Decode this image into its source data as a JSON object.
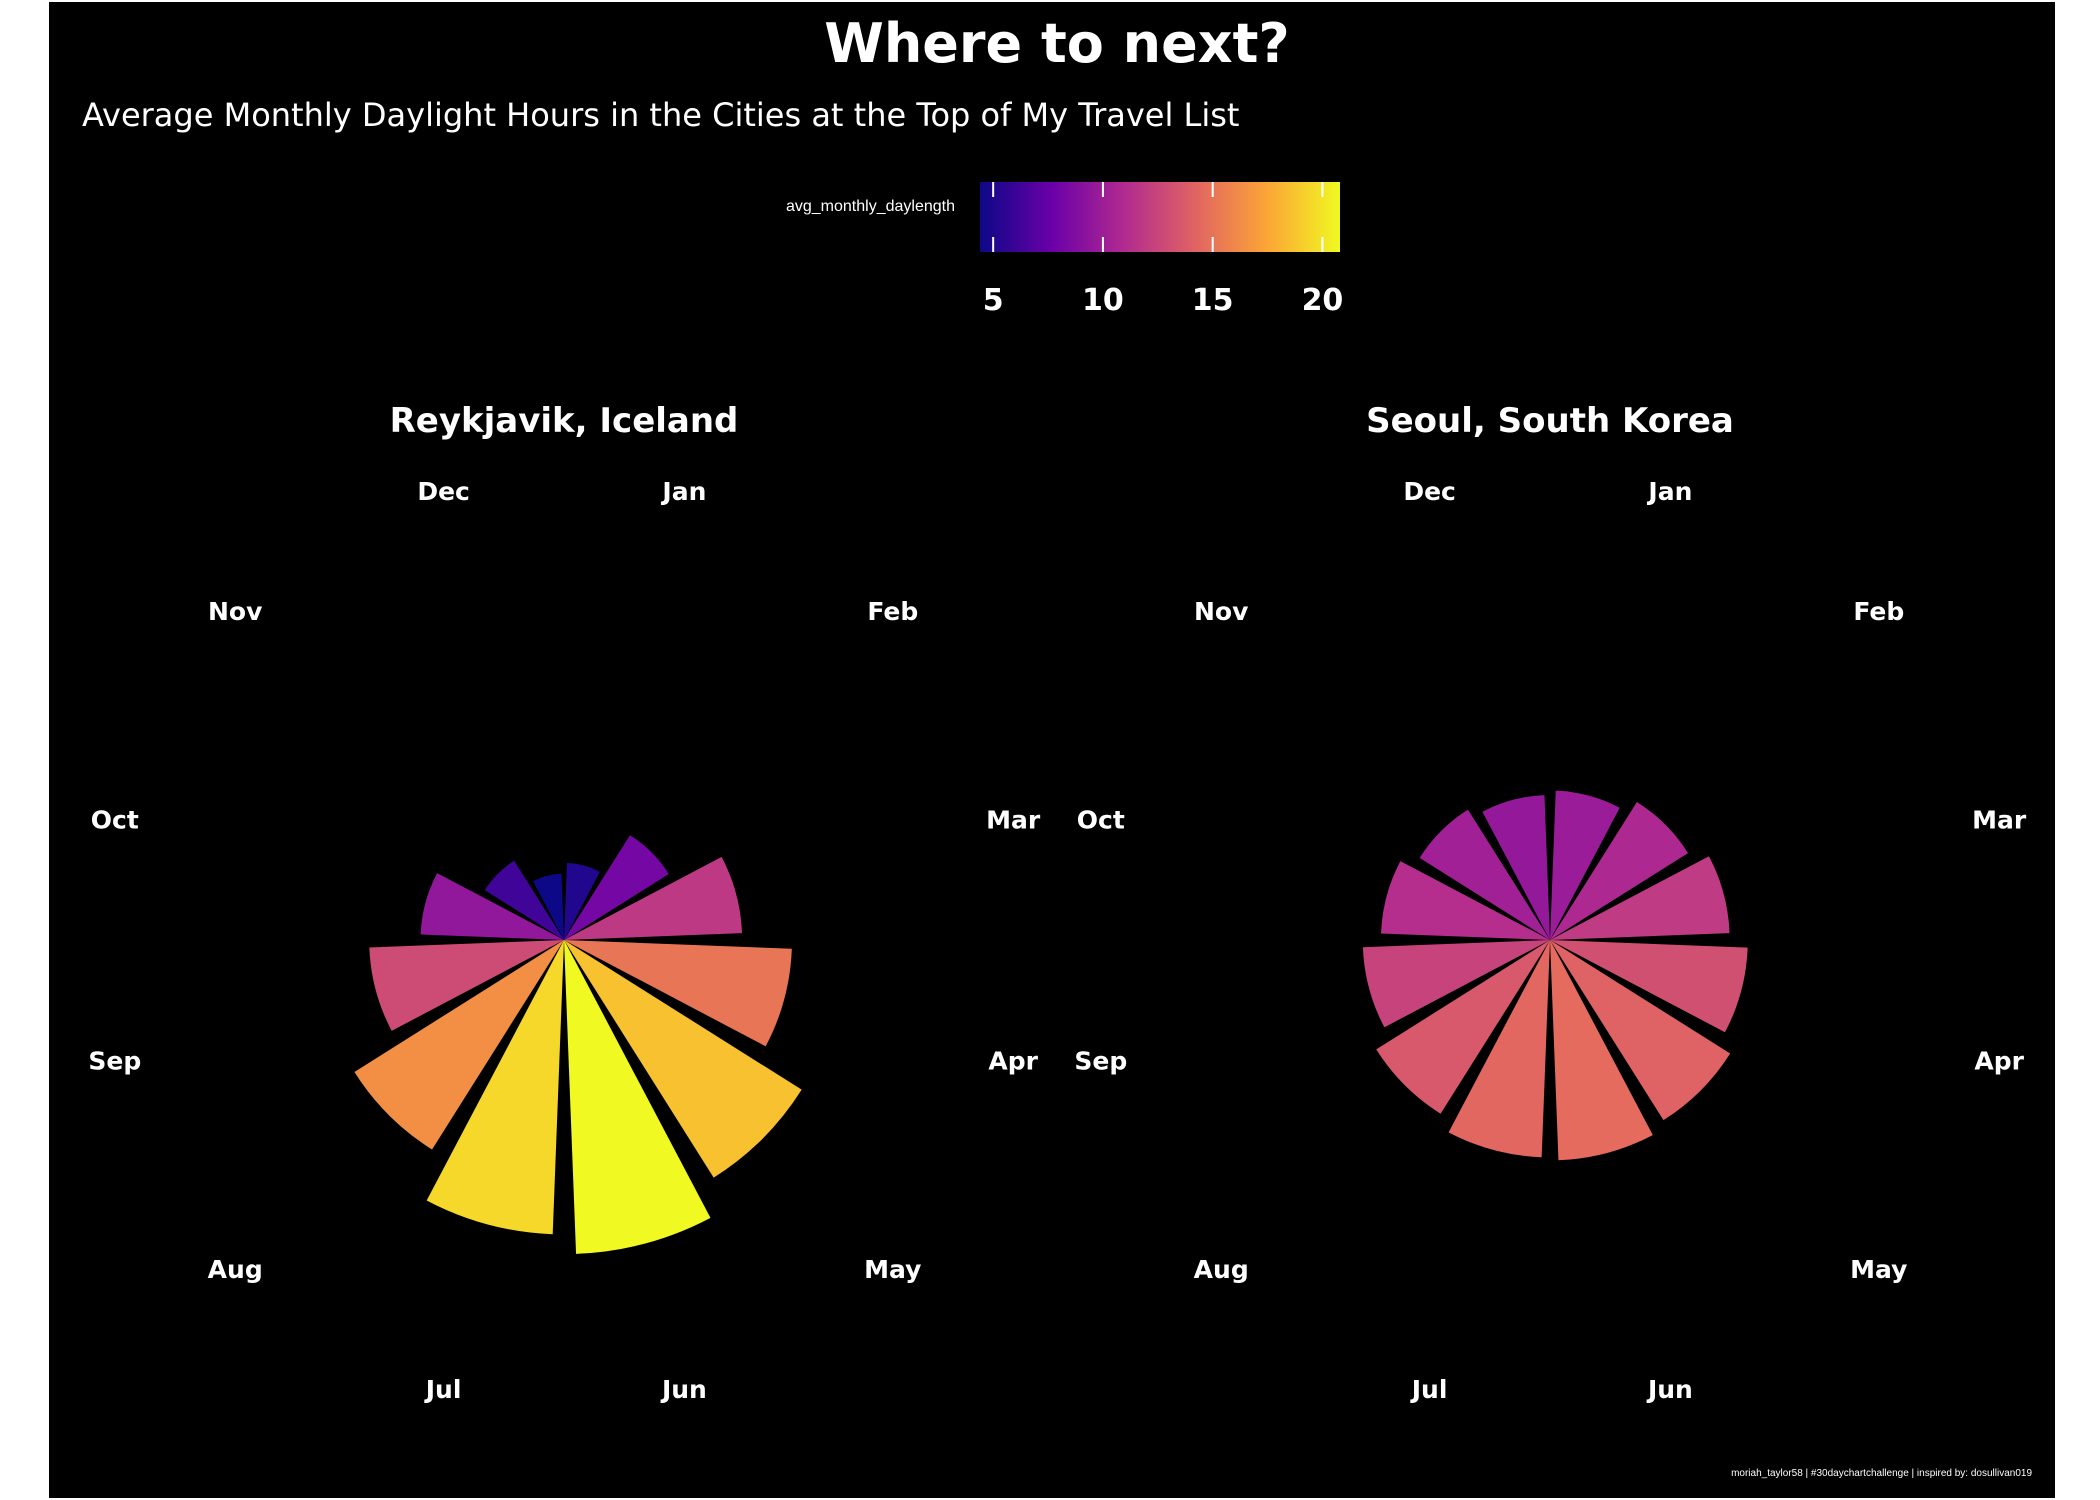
{
  "title": "Where to next?",
  "subtitle": "Average Monthly Daylight Hours in the Cities at the Top of My Travel List",
  "caption": "moriah_taylor58 | #30daychartchallenge | inspired by: dosullivan019",
  "legend": {
    "title": "avg_monthly_daylength",
    "ticks": [
      "5",
      "10",
      "15",
      "20"
    ],
    "tick_values": [
      5,
      10,
      15,
      20
    ],
    "range": [
      4.4,
      20.8
    ],
    "colors": [
      "#0d0887",
      "#6a00a8",
      "#b12a90",
      "#e16462",
      "#fca636",
      "#f0f921"
    ]
  },
  "chart_data": [
    {
      "type": "polar-bar",
      "title": "Reykjavik, Iceland",
      "categories": [
        "Jan",
        "Feb",
        "Mar",
        "Apr",
        "May",
        "Jun",
        "Jul",
        "Aug",
        "Sep",
        "Oct",
        "Nov",
        "Dec"
      ],
      "values": [
        5.1,
        8.2,
        11.8,
        15.1,
        18.6,
        20.8,
        19.5,
        16.4,
        12.9,
        9.5,
        6.2,
        4.4
      ]
    },
    {
      "type": "polar-bar",
      "title": "Seoul, South Korea",
      "categories": [
        "Jan",
        "Feb",
        "Mar",
        "Apr",
        "May",
        "Jun",
        "Jul",
        "Aug",
        "Sep",
        "Oct",
        "Nov",
        "Dec"
      ],
      "values": [
        9.9,
        10.8,
        11.9,
        13.1,
        14.1,
        14.6,
        14.4,
        13.6,
        12.4,
        11.2,
        10.2,
        9.6
      ]
    }
  ]
}
